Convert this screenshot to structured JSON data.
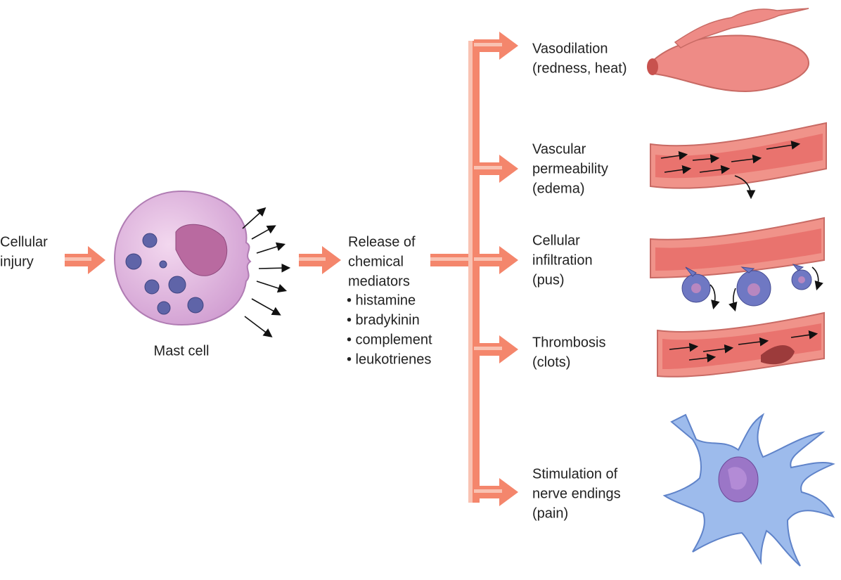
{
  "input": {
    "lines": [
      "Cellular",
      "injury"
    ]
  },
  "cell": {
    "label": "Mast cell"
  },
  "mediators": {
    "lines": [
      "Release of",
      "chemical",
      "mediators"
    ],
    "items": [
      "• histamine",
      "• bradykinin",
      "• complement",
      "• leukotrienes"
    ]
  },
  "effects": [
    {
      "lines": [
        "Vasodilation",
        "(redness, heat)"
      ]
    },
    {
      "lines": [
        "Vascular",
        "permeability",
        "(edema)"
      ]
    },
    {
      "lines": [
        "Cellular",
        "infiltration",
        "(pus)"
      ]
    },
    {
      "lines": [
        "Thrombosis",
        "(clots)"
      ]
    },
    {
      "lines": [
        "Stimulation of",
        "nerve endings",
        "(pain)"
      ]
    }
  ]
}
